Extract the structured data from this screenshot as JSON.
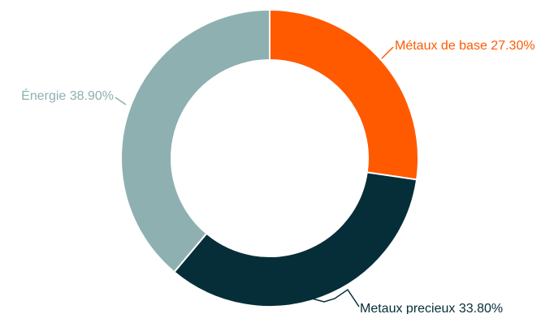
{
  "chart_data": {
    "type": "pie",
    "donut": true,
    "title": "",
    "slices": [
      {
        "label": "Métaux de base 27.30%",
        "value": 27.3,
        "color": "#ff5a00",
        "label_color": "#ff5a00"
      },
      {
        "label": "Metaux precieux 33.80%",
        "value": 33.8,
        "color": "#052e38",
        "label_color": "#052e38"
      },
      {
        "label": "Énergie 38.90%",
        "value": 38.9,
        "color": "#8eb0b0",
        "label_color": "#8eb0b0"
      }
    ]
  }
}
